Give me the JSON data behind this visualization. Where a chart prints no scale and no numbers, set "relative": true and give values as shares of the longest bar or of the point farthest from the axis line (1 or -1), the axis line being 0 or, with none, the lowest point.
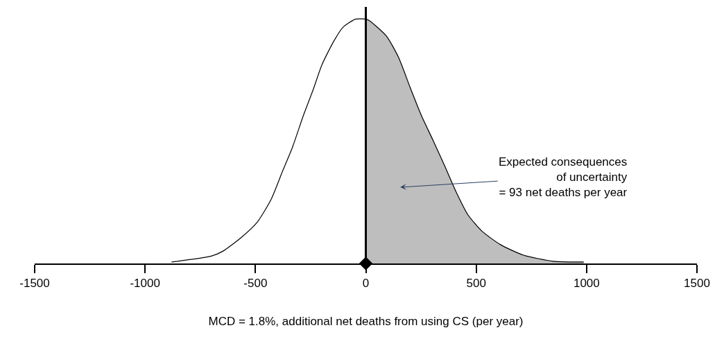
{
  "chart_data": {
    "type": "line",
    "relative": true,
    "xlabel": "MCD = 1.8%, additional net deaths from using CS (per year)",
    "xlim": [
      -1500,
      1500
    ],
    "xticks": [
      -1500,
      -1000,
      -500,
      0,
      500,
      1000,
      1500
    ],
    "series": [
      {
        "type": "area",
        "color": "#bebebe",
        "x": [
          0,
          16,
          94,
          148,
          201,
          252,
          305,
          358,
          409,
          462,
          525,
          610,
          714,
          849,
          987
        ],
        "values": [
          1.0,
          0.994,
          0.93,
          0.844,
          0.72,
          0.605,
          0.503,
          0.398,
          0.293,
          0.2,
          0.133,
          0.077,
          0.034,
          0.009,
          0.006
        ]
      },
      {
        "color": "#000000",
        "x": [
          -880,
          -700,
          -648,
          -566,
          -491,
          -428,
          -377,
          -333,
          -283,
          -239,
          -198,
          -145,
          -104,
          -47,
          0,
          16,
          94,
          148,
          201,
          252,
          305,
          358,
          409,
          462,
          525,
          610,
          714,
          849,
          987
        ],
        "values": [
          0.006,
          0.03,
          0.05,
          0.105,
          0.17,
          0.264,
          0.378,
          0.474,
          0.605,
          0.71,
          0.815,
          0.91,
          0.966,
          1.0,
          1.0,
          0.994,
          0.93,
          0.844,
          0.72,
          0.605,
          0.503,
          0.398,
          0.293,
          0.2,
          0.133,
          0.077,
          0.034,
          0.009,
          0.006
        ]
      },
      {
        "type": "scatter",
        "color": "#000000",
        "marker": "diamond",
        "x": [
          0
        ],
        "values": [
          0
        ]
      }
    ],
    "ref_lines": [
      {
        "axis": "x",
        "value": 0,
        "color": "#000000"
      }
    ],
    "annotations": [
      "Expected consequences\nof uncertainty\n= 93 net deaths per year"
    ]
  }
}
